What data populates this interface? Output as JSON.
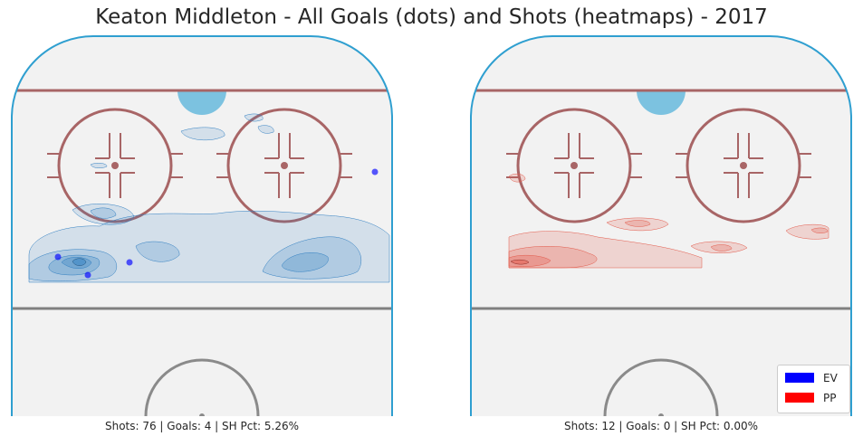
{
  "title": "Keaton Middleton - All Goals (dots) and Shots (heatmaps) - 2017",
  "chart_data": [
    {
      "type": "heatmap",
      "panel": "left",
      "strength": "EV",
      "caption": "Shots: 76 | Goals: 4 | SH Pct: 5.26%",
      "color": "#0000ff",
      "heat_color": "#2f7ec1",
      "goals": [
        {
          "x": 414,
          "y": 190
        },
        {
          "x": 64,
          "y": 284
        },
        {
          "x": 97,
          "y": 304
        },
        {
          "x": 143,
          "y": 290
        }
      ]
    },
    {
      "type": "heatmap",
      "panel": "right",
      "strength": "PP",
      "caption": "Shots: 12 | Goals: 0 | SH Pct: 0.00%",
      "color": "#ff0000",
      "heat_color": "#e35a4b",
      "goals": []
    }
  ],
  "legend": [
    {
      "label": "EV",
      "color": "#0000ff"
    },
    {
      "label": "PP",
      "color": "#ff0000"
    }
  ]
}
